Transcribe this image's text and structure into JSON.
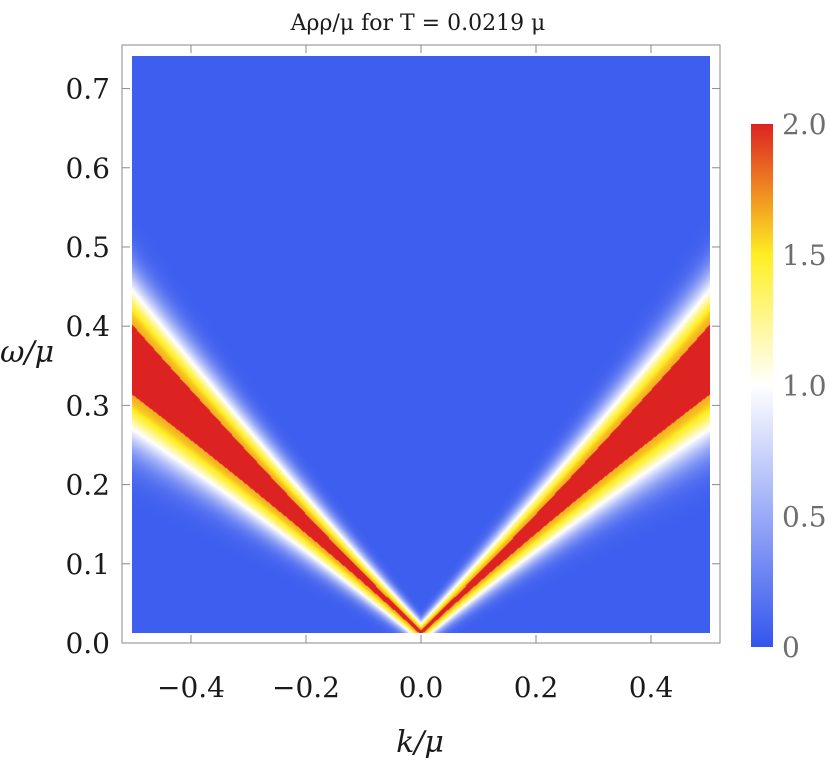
{
  "chart_data": {
    "type": "heatmap",
    "title": "Aρρ/μ for T = 0.0219 μ",
    "xlabel": "k/μ",
    "ylabel": "ω/μ",
    "xlim": [
      -0.52,
      0.52
    ],
    "ylim": [
      0.0,
      0.755
    ],
    "x_ticks": [
      -0.4,
      -0.2,
      0.0,
      0.2,
      0.4
    ],
    "x_tick_labels": [
      "−0.4",
      "−0.2",
      "0.0",
      "0.2",
      "0.4"
    ],
    "y_ticks": [
      0.0,
      0.1,
      0.2,
      0.3,
      0.4,
      0.5,
      0.6,
      0.7
    ],
    "y_tick_labels": [
      "0.0",
      "0.1",
      "0.2",
      "0.3",
      "0.4",
      "0.5",
      "0.6",
      "0.7"
    ],
    "colorbar": {
      "range": [
        0,
        2.0
      ],
      "ticks": [
        0,
        0.5,
        1.0,
        1.5,
        2.0
      ],
      "tick_labels": [
        "0",
        "0.5",
        "1.0",
        "1.5",
        "2.0"
      ],
      "colors": [
        "#3355ee",
        "#ffffff",
        "#ffee22",
        "#dd2222"
      ]
    },
    "features": {
      "branch_center_slope": 0.71,
      "branch_width_at_edge": 0.085,
      "peak_value": 2.0,
      "background_value": 0.05
    }
  }
}
